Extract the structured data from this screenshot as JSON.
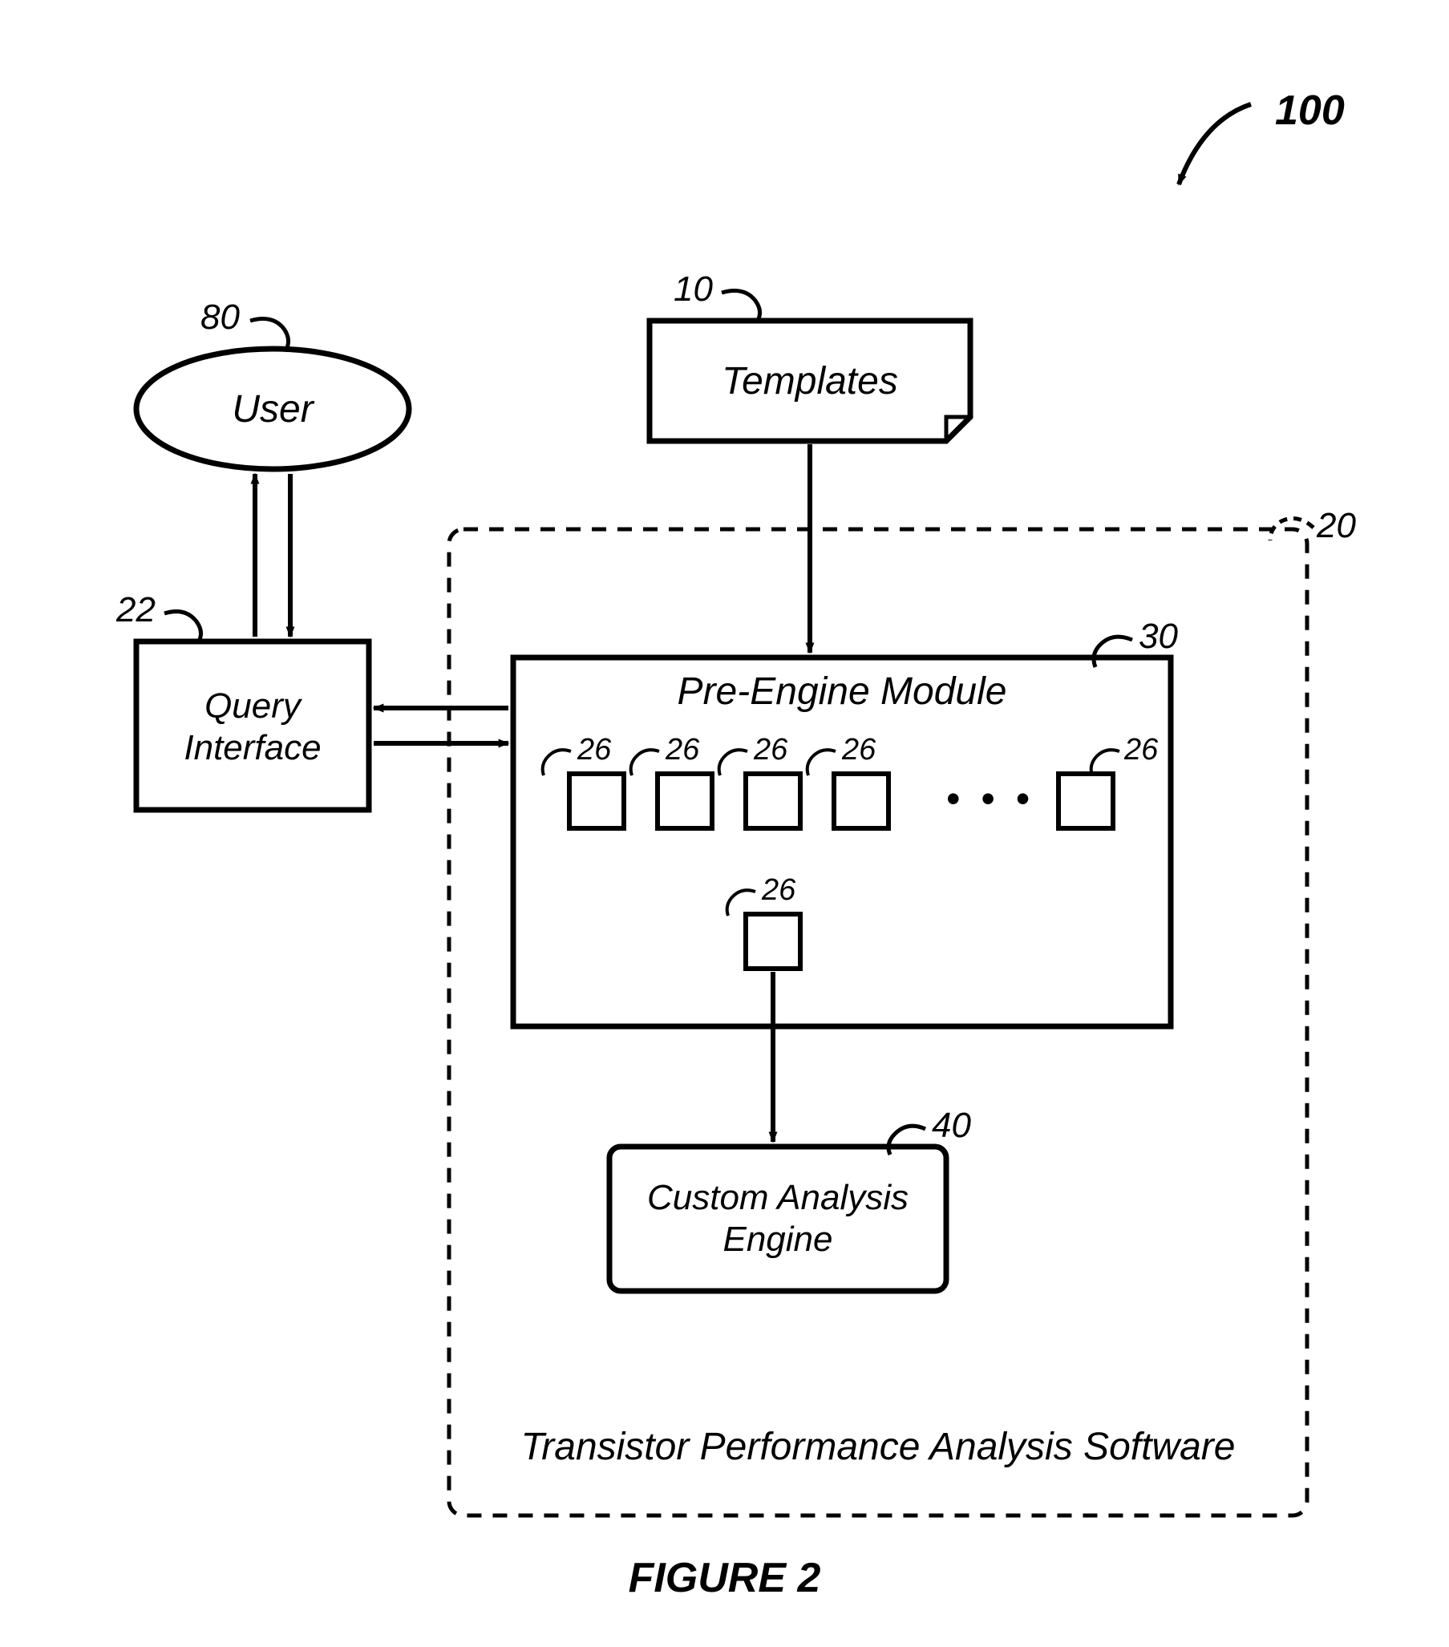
{
  "figure": {
    "system_ref": "100",
    "caption": "FIGURE 2"
  },
  "user": {
    "label": "User",
    "ref": "80"
  },
  "templates": {
    "label": "Templates",
    "ref": "10"
  },
  "query_interface": {
    "label_line1": "Query",
    "label_line2": "Interface",
    "ref": "22"
  },
  "software_container": {
    "label": "Transistor Performance Analysis Software",
    "ref": "20"
  },
  "pre_engine": {
    "label": "Pre-Engine Module",
    "ref": "30",
    "item_ref": "26",
    "ellipsis": "• • •"
  },
  "engine": {
    "label_line1": "Custom Analysis",
    "label_line2": "Engine",
    "ref": "40"
  },
  "style": {
    "stroke": "#000000",
    "stroke_width_thick": 7,
    "stroke_width_med": 6,
    "stroke_width_thin": 5,
    "dash": "18 14",
    "font_family": "Arial, Helvetica, sans-serif",
    "font_italic": "italic",
    "font_bold": "bold",
    "label_size": 48,
    "ref_size": 44,
    "caption_size": 52,
    "small_label_size": 44,
    "bg": "#ffffff"
  },
  "layout": {
    "viewbox_w": 1807,
    "viewbox_h": 2054
  }
}
